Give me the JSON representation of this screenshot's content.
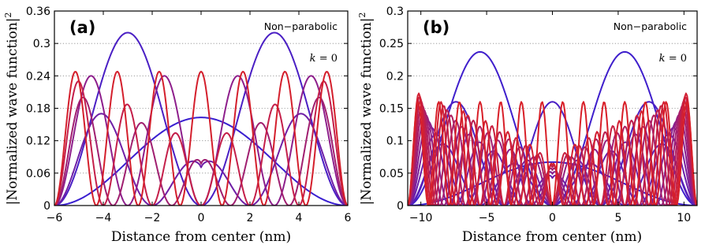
{
  "figure": {
    "ylabel": "|Normalized wave function|",
    "ylabel_sup": "2",
    "xlabel": "Distance from center (nm)"
  },
  "chart_data": [
    {
      "type": "line",
      "panel_label": "(a)",
      "annotation": "Non−parabolic",
      "k_var": "k",
      "k_rest": " = 0",
      "xlabel": "Distance from center (nm)",
      "ylabel": "|Normalized wave function|²",
      "xlim": [
        -6,
        6
      ],
      "ylim": [
        0,
        0.36
      ],
      "xticks": [
        -6,
        -4,
        -2,
        0,
        2,
        4,
        6
      ],
      "xtick_labels": [
        "−6",
        "−4",
        "−2",
        "0",
        "2",
        "4",
        "6"
      ],
      "yticks": [
        0,
        0.06,
        0.12,
        0.18,
        0.24,
        0.3,
        0.36
      ],
      "ytick_labels": [
        "0",
        "0.06",
        "0.12",
        "0.18",
        "0.24",
        "0.3",
        "0.36"
      ],
      "grid": "horizontal dotted",
      "well_half_width_nm": 6,
      "series": [
        {
          "index": 1,
          "peak": 0.163,
          "color": "#3a1fd0"
        },
        {
          "index": 2,
          "peak": 0.32,
          "color": "#4a1fc4",
          "envelope": "uniform"
        },
        {
          "index": 3,
          "peak": 0.17,
          "color": "#6f1fa6"
        },
        {
          "index": 4,
          "peak": 0.24,
          "color": "#8e1f8c",
          "envelope": "uniform"
        },
        {
          "index": 5,
          "peak": 0.2,
          "color": "#a01f70"
        },
        {
          "index": 6,
          "peak": 0.23,
          "color": "#c41f4a"
        },
        {
          "index": 7,
          "peak": 0.248,
          "color": "#d41f2c",
          "envelope": "uniform"
        }
      ]
    },
    {
      "type": "line",
      "panel_label": "(b)",
      "annotation": "Non−parabolic",
      "k_var": "k",
      "k_rest": " = 0",
      "xlabel": "Distance from center (nm)",
      "ylabel": "|Normalized wave function|²",
      "xlim": [
        -11,
        11
      ],
      "ylim": [
        0,
        0.3
      ],
      "xticks": [
        -10,
        -5,
        0,
        5,
        10
      ],
      "xtick_labels": [
        "−10",
        "−5",
        "0",
        "5",
        "10"
      ],
      "yticks": [
        0,
        0.05,
        0.1,
        0.15,
        0.2,
        0.25,
        0.3
      ],
      "ytick_labels": [
        "0",
        "0.05",
        "0.1",
        "0.15",
        "0.2",
        "0.25",
        "0.3"
      ],
      "grid": "horizontal dotted",
      "well_half_width_nm": 11,
      "series": [
        {
          "index": 1,
          "peak": 0.067,
          "color": "#3a1fd0"
        },
        {
          "index": 2,
          "peak": 0.237,
          "color": "#3f1fcc",
          "envelope": "uniform"
        },
        {
          "index": 3,
          "peak": 0.16,
          "color": "#4a1fc4",
          "envelope": "uniform"
        },
        {
          "index": 4,
          "peak": 0.095,
          "color": "#5a1fb8"
        },
        {
          "index": 5,
          "peak": 0.11,
          "color": "#6a1fab"
        },
        {
          "index": 6,
          "peak": 0.12,
          "color": "#7a1f9c"
        },
        {
          "index": 7,
          "peak": 0.13,
          "color": "#881f8f"
        },
        {
          "index": 8,
          "peak": 0.14,
          "color": "#961f80"
        },
        {
          "index": 9,
          "peak": 0.148,
          "color": "#a41f70"
        },
        {
          "index": 10,
          "peak": 0.155,
          "color": "#b01f60"
        },
        {
          "index": 11,
          "peak": 0.162,
          "color": "#bc1f50"
        },
        {
          "index": 12,
          "peak": 0.168,
          "color": "#c81f40"
        },
        {
          "index": 13,
          "peak": 0.173,
          "color": "#d21f32"
        },
        {
          "index": 14,
          "peak": 0.16,
          "color": "#d81f28",
          "envelope": "uniform"
        }
      ]
    }
  ]
}
